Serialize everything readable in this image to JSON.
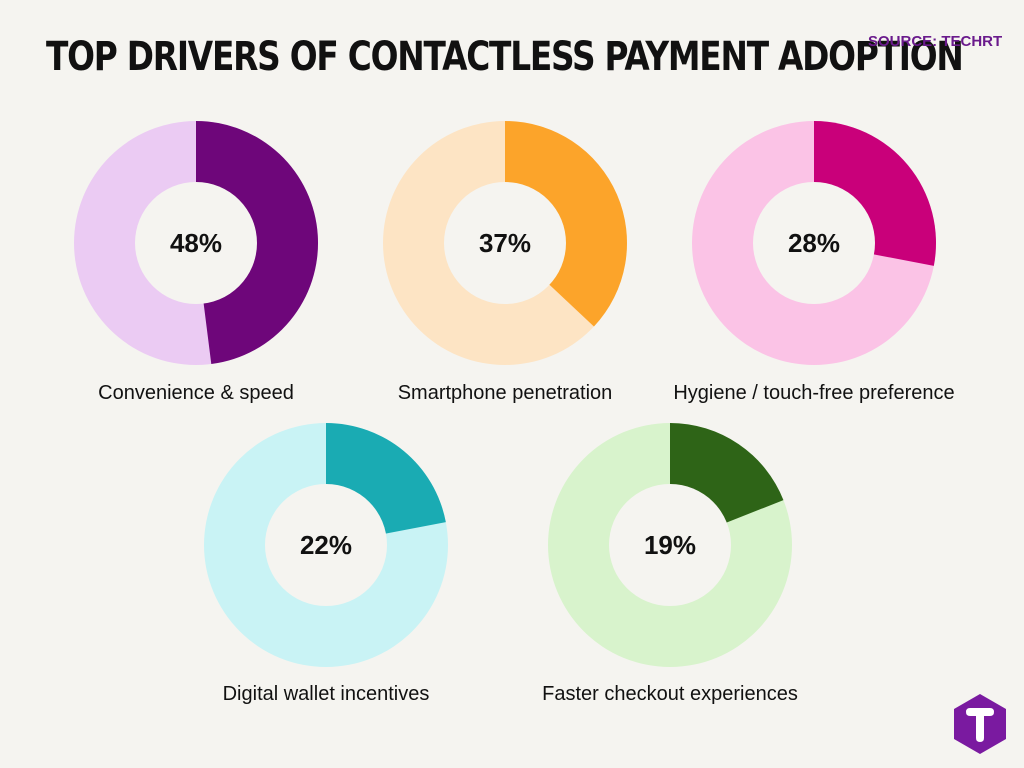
{
  "header": {
    "title": "TOP DRIVERS OF CONTACTLESS PAYMENT ADOPTION",
    "source": "SOURCE: TECHRT"
  },
  "logo": {
    "icon": "techrt-t-logo-icon",
    "color": "#7a1aa0"
  },
  "chart_data": {
    "type": "pie",
    "variant": "donut",
    "title": "TOP DRIVERS OF CONTACTLESS PAYMENT ADOPTION",
    "unit": "%",
    "series": [
      {
        "name": "Convenience & speed",
        "value": 48,
        "label": "48%",
        "color": "#6e067a",
        "track_color": "#ebcbf3"
      },
      {
        "name": "Smartphone penetration",
        "value": 37,
        "label": "37%",
        "color": "#fca42a",
        "track_color": "#fde4c4"
      },
      {
        "name": "Hygiene / touch-free preference",
        "value": 28,
        "label": "28%",
        "color": "#c9007a",
        "track_color": "#fbc3e6"
      },
      {
        "name": "Digital wallet incentives",
        "value": 22,
        "label": "22%",
        "color": "#1aabb3",
        "track_color": "#c9f3f5"
      },
      {
        "name": "Faster checkout experiences",
        "value": 19,
        "label": "19%",
        "color": "#2e6417",
        "track_color": "#d8f3cc"
      }
    ]
  }
}
